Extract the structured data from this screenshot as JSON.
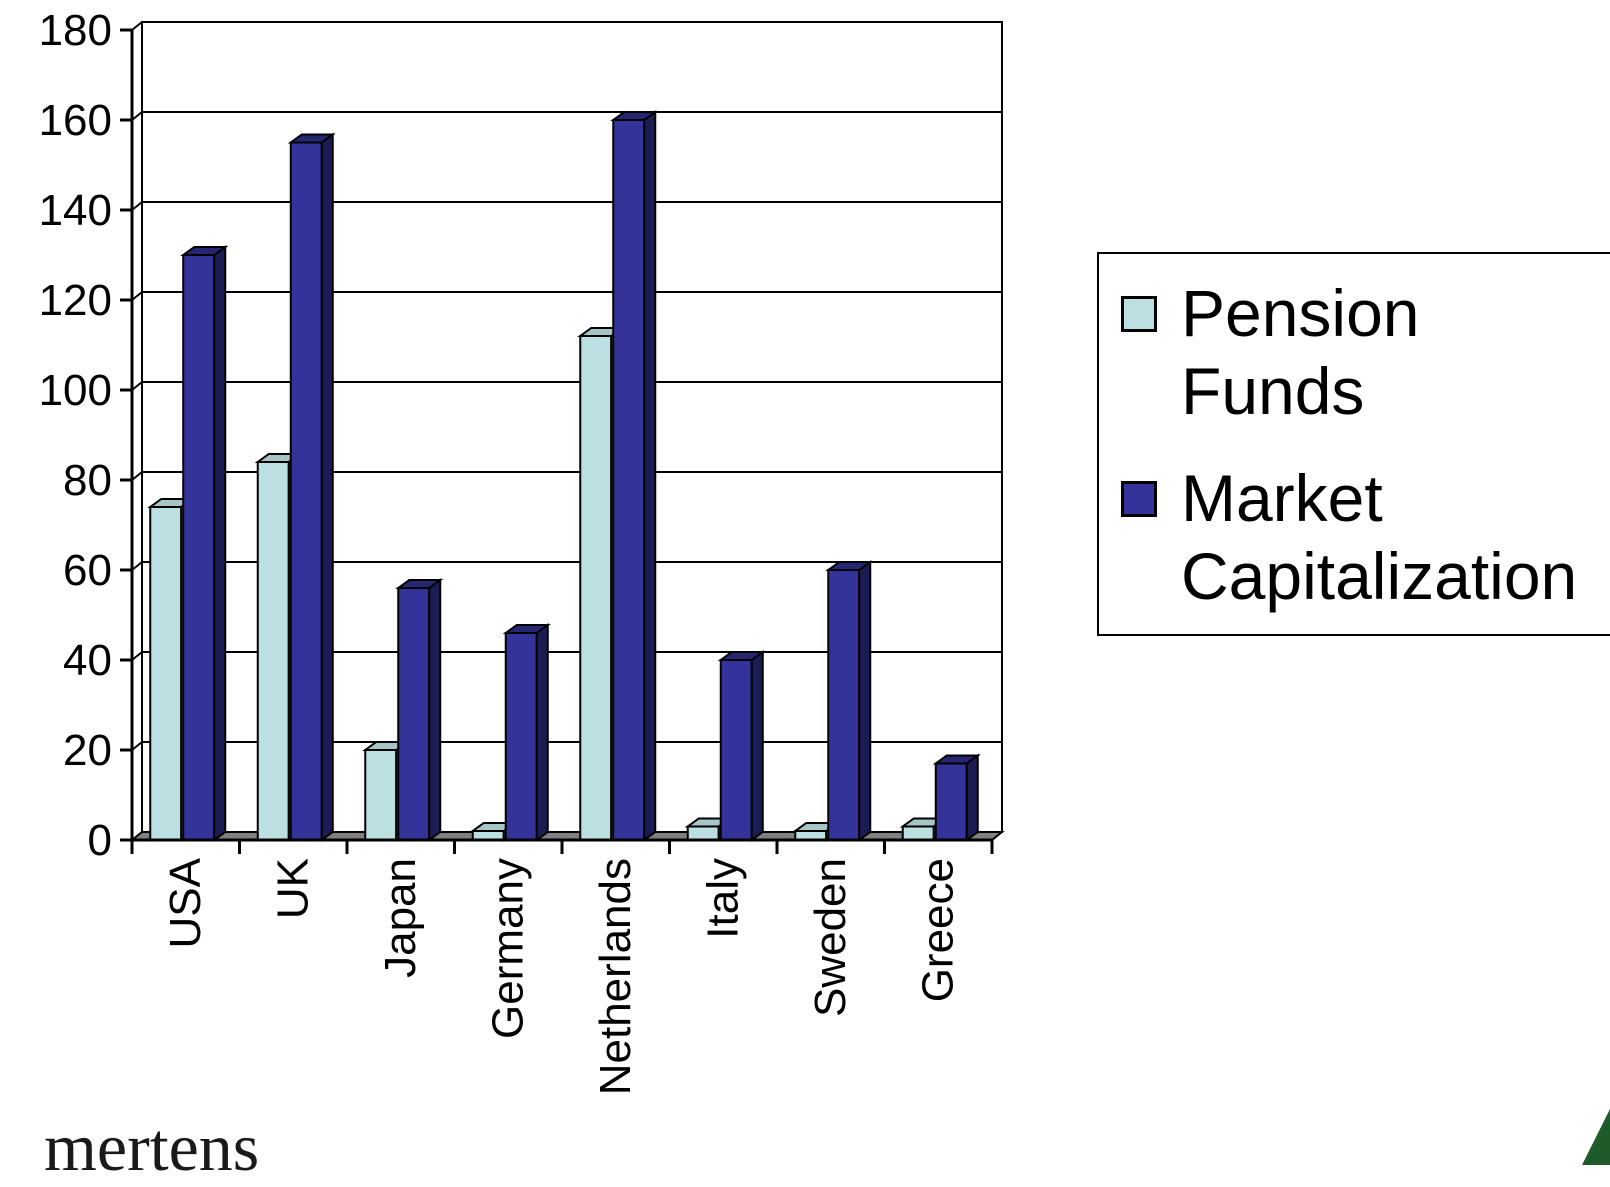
{
  "chart_data": {
    "type": "bar",
    "categories": [
      "USA",
      "UK",
      "Japan",
      "Germany",
      "Netherlands",
      "Italy",
      "Sweden",
      "Greece"
    ],
    "series": [
      {
        "name": "Pension Funds",
        "values": [
          74,
          84,
          20,
          2,
          112,
          3,
          2,
          3
        ]
      },
      {
        "name": "Market Capitalization",
        "values": [
          130,
          155,
          56,
          46,
          160,
          40,
          60,
          17
        ]
      }
    ],
    "ylim": [
      0,
      180
    ],
    "yticks": [
      0,
      20,
      40,
      60,
      80,
      100,
      120,
      140,
      160,
      180
    ],
    "grid": true,
    "legend_position": "right",
    "style": "3d-clustered-column"
  },
  "legend": {
    "items": [
      {
        "label_line1": "Pension",
        "label_line2": "Funds",
        "color": "#bce0e2"
      },
      {
        "label_line1": "Market",
        "label_line2": "Capitalization",
        "color": "#333399"
      }
    ]
  },
  "footer": {
    "text": "mertens"
  }
}
